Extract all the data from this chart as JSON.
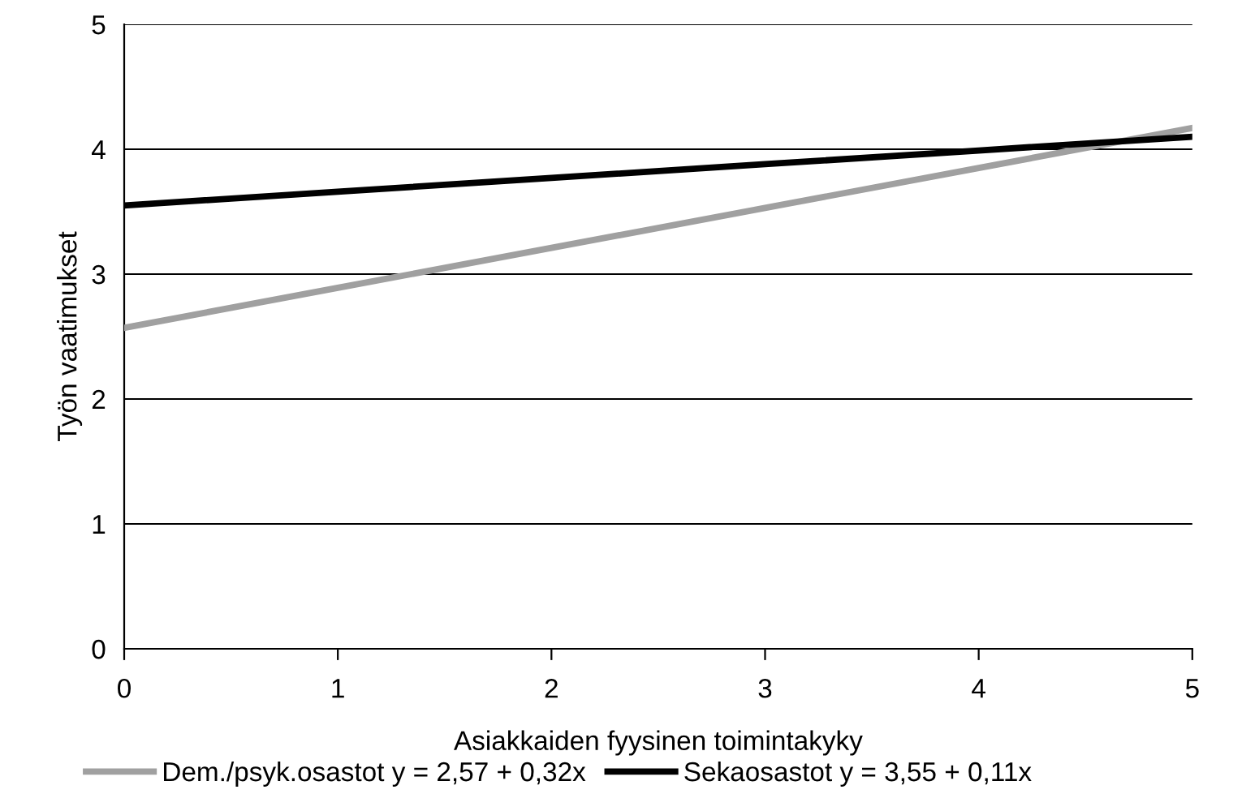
{
  "chart_data": {
    "type": "line",
    "xlabel": "Asiakkaiden fyysinen toimintakyky",
    "ylabel": "Työn vaatimukset",
    "x": [
      0,
      1,
      2,
      3,
      4,
      5
    ],
    "series": [
      {
        "name": "Dem./psyk.osastot y = 2,57 + 0,32x",
        "color": "#a0a0a0",
        "values": [
          2.57,
          2.89,
          3.21,
          3.53,
          3.85,
          4.17
        ]
      },
      {
        "name": "Sekaosastot y = 3,55 + 0,11x",
        "color": "#000000",
        "values": [
          3.55,
          3.66,
          3.77,
          3.88,
          3.99,
          4.1
        ]
      }
    ],
    "xlim": [
      0,
      5
    ],
    "xticks": [
      0,
      1,
      2,
      3,
      4,
      5
    ],
    "ylim": [
      0,
      5
    ],
    "yticks": [
      0,
      1,
      2,
      3,
      4,
      5
    ],
    "grid": "y",
    "legend": "bottom",
    "marker": "none",
    "line_style": "solid"
  }
}
